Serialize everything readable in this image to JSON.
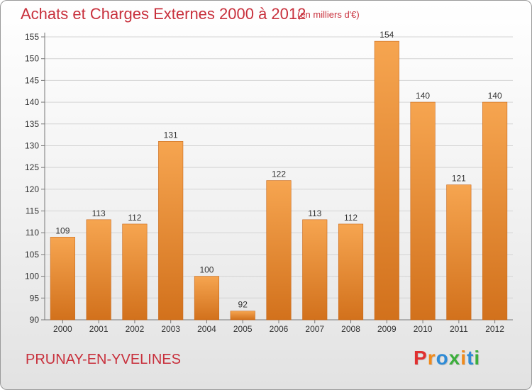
{
  "header": {
    "title": "Achats et Charges Externes 2000 à 2012",
    "subtitle": "(en milliers d'€)"
  },
  "footer": {
    "town": "PRUNAY-EN-YVELINES",
    "logo": [
      "P",
      "r",
      "o",
      "x",
      "i",
      "t",
      "i"
    ],
    "logo_colors": [
      "#e03030",
      "#f08a1c",
      "#2e8bd6",
      "#3cae3c",
      "#f08a1c",
      "#2e8bd6",
      "#3cae3c"
    ]
  },
  "chart_data": {
    "type": "bar",
    "categories": [
      "2000",
      "2001",
      "2002",
      "2003",
      "2004",
      "2005",
      "2006",
      "2007",
      "2008",
      "2009",
      "2010",
      "2011",
      "2012"
    ],
    "values": [
      109,
      113,
      112,
      131,
      100,
      92,
      122,
      113,
      112,
      154,
      140,
      121,
      140
    ],
    "title": "Achats et Charges Externes 2000 à 2012",
    "ylim": [
      90,
      155
    ],
    "yticks": [
      90,
      95,
      100,
      105,
      110,
      115,
      120,
      125,
      130,
      135,
      140,
      145,
      150,
      155
    ],
    "grid": true,
    "bar_color_top": "#f6a550",
    "bar_color_bottom": "#d2711c"
  }
}
